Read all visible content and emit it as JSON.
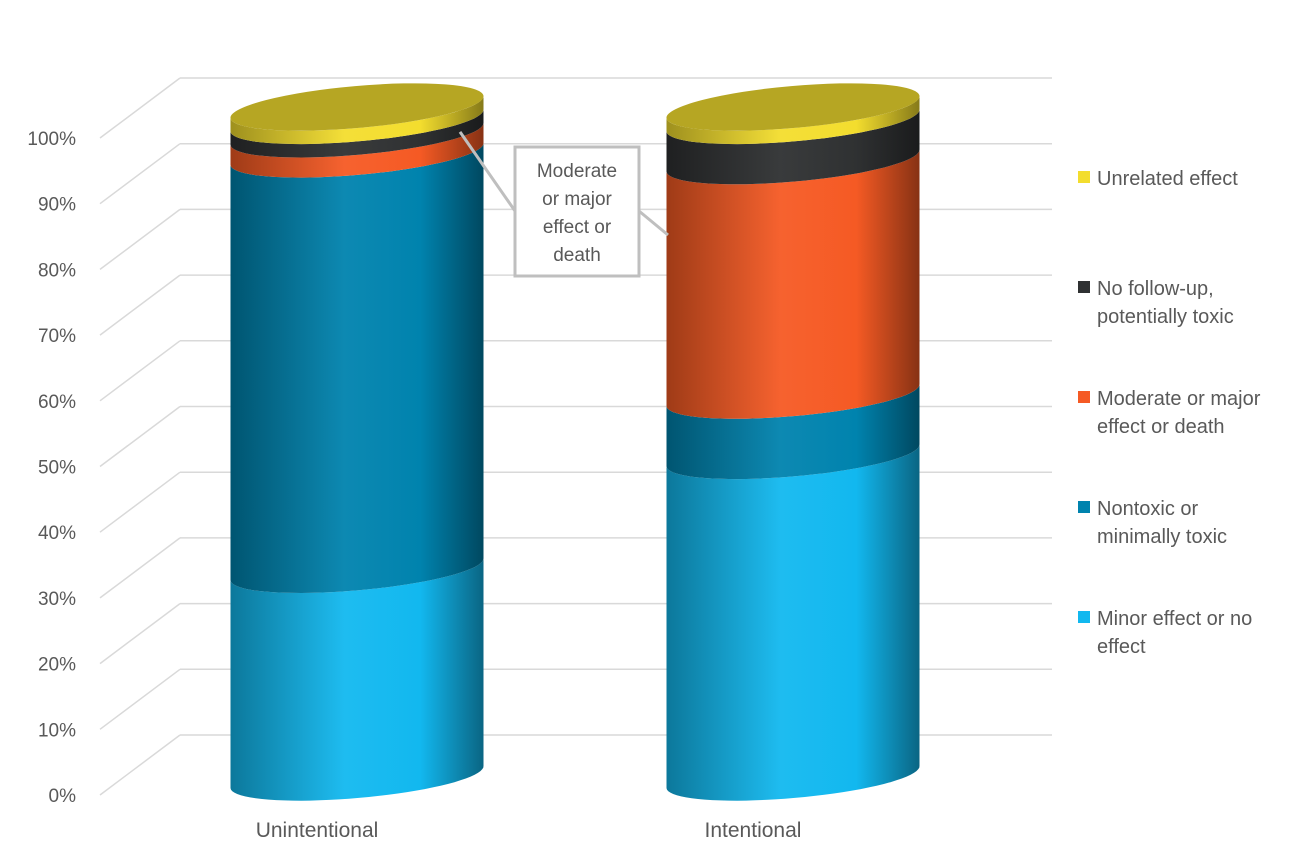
{
  "chart_data": {
    "type": "bar",
    "stacked": true,
    "style": "3d-cylinder",
    "categories": [
      "Unintentional",
      "Intentional"
    ],
    "series": [
      {
        "name": "Minor effect or no effect",
        "color": "#12b8ef",
        "values": [
          31,
          48
        ]
      },
      {
        "name": "Nontoxic or minimally toxic",
        "color": "#0083ae",
        "values": [
          62,
          9
        ]
      },
      {
        "name": "Moderate or major effect or death",
        "color": "#f55a24",
        "values": [
          3,
          35
        ]
      },
      {
        "name": "No follow-up, potentially toxic",
        "color": "#2f3132",
        "values": [
          2,
          6
        ]
      },
      {
        "name": "Unrelated effect",
        "color": "#f3dd2e",
        "values": [
          2,
          2
        ]
      }
    ],
    "ylim": [
      0,
      100
    ],
    "yticks": [
      "0%",
      "10%",
      "20%",
      "30%",
      "40%",
      "50%",
      "60%",
      "70%",
      "80%",
      "90%",
      "100%"
    ],
    "grid": true,
    "legend_position": "right",
    "annotation": "Moderate or major effect or death"
  }
}
